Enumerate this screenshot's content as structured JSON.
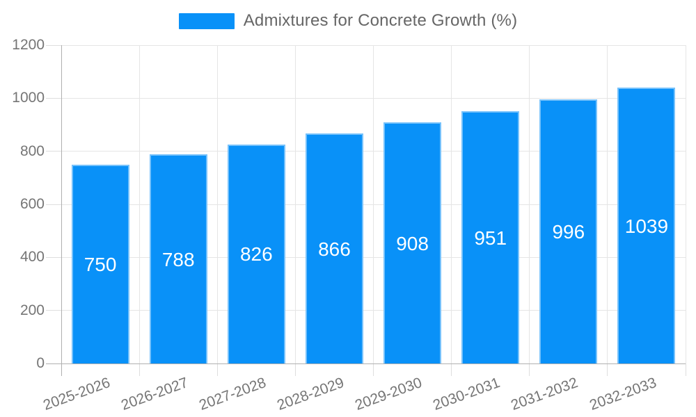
{
  "legend": {
    "label": "Admixtures for Concrete Growth (%)"
  },
  "colors": {
    "bar": "#0991f8",
    "grid": "#e5e5e5",
    "axis": "#b0b0b0",
    "tick_text": "#757575",
    "legend_text": "#666666",
    "value_label_text": "#ffffff",
    "background": "#ffffff"
  },
  "chart_data": {
    "type": "bar",
    "title": "Admixtures for Concrete Growth (%)",
    "legend_position": "top",
    "categories": [
      "2025-2026",
      "2026-2027",
      "2027-2028",
      "2028-2029",
      "2029-2030",
      "2030-2031",
      "2031-2032",
      "2032-2033"
    ],
    "values": [
      750,
      788,
      826,
      866,
      908,
      951,
      996,
      1039
    ],
    "series": [
      {
        "name": "Admixtures for Concrete Growth (%)",
        "values": [
          750,
          788,
          826,
          866,
          908,
          951,
          996,
          1039
        ],
        "color": "#0991f8"
      }
    ],
    "xlabel": "",
    "ylabel": "",
    "ylim": [
      0,
      1200
    ],
    "yticks": [
      0,
      200,
      400,
      600,
      800,
      1000,
      1200
    ],
    "grid": "horizontal and vertical light gray gridlines",
    "x_tick_rotation_deg": -20,
    "value_labels": "white, centered inside bars"
  }
}
